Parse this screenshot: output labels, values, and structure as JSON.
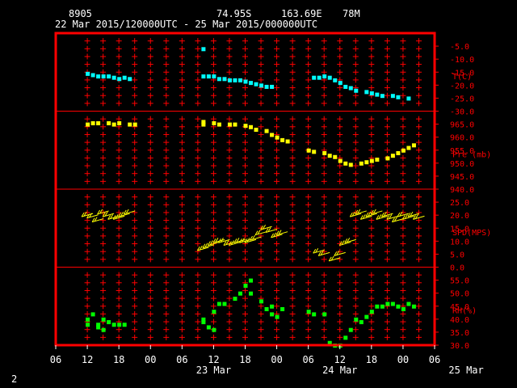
{
  "header": {
    "station": "8905",
    "lat": "74.95S",
    "lon": "163.69E",
    "elev": "78M",
    "period": "22 Mar 2015/120000UTC - 25 Mar 2015/000000UTC"
  },
  "footer": {
    "page": "2"
  },
  "colors": {
    "frame": "#ff0000",
    "grid": "#ff0000",
    "text": "#ffffff",
    "temp": "#00ffff",
    "pres": "#ffff00",
    "wind": "#ffff00",
    "rh": "#00ff00"
  },
  "chart_data": {
    "type": "scatter",
    "x_axis": {
      "hour_ticks": [
        "06",
        "12",
        "18",
        "00",
        "06",
        "12",
        "18",
        "00",
        "06",
        "12",
        "18",
        "00",
        "06"
      ],
      "range_hours": [
        -6,
        66
      ],
      "day_labels": [
        {
          "label": "23 Mar",
          "hour": 24
        },
        {
          "label": "24 Mar",
          "hour": 48
        },
        {
          "label": "25 Mar",
          "hour": 72
        }
      ]
    },
    "panels": [
      {
        "name": "temperature",
        "ylabel": "T(C)",
        "ylim": [
          -30,
          0
        ],
        "ticks": [
          "-5.0",
          "-10.0",
          "-15.0",
          "-20.0",
          "-25.0",
          "-30.0"
        ],
        "tick_values": [
          -5,
          -10,
          -15,
          -20,
          -25,
          -30
        ],
        "points": [
          [
            0,
            -15.5
          ],
          [
            1,
            -16
          ],
          [
            2,
            -16.5
          ],
          [
            3,
            -16.5
          ],
          [
            4,
            -16.5
          ],
          [
            5,
            -17
          ],
          [
            6,
            -17.5
          ],
          [
            7,
            -17
          ],
          [
            8,
            -17.5
          ],
          [
            22,
            -6
          ],
          [
            22,
            -16.5
          ],
          [
            23,
            -16.5
          ],
          [
            24,
            -16.5
          ],
          [
            25,
            -17.5
          ],
          [
            26,
            -17.5
          ],
          [
            27,
            -18
          ],
          [
            28,
            -18
          ],
          [
            29,
            -18
          ],
          [
            30,
            -18.5
          ],
          [
            31,
            -19
          ],
          [
            32,
            -19.5
          ],
          [
            33,
            -20
          ],
          [
            34,
            -20.5
          ],
          [
            35,
            -20.5
          ],
          [
            43,
            -17
          ],
          [
            44,
            -17
          ],
          [
            45,
            -16.5
          ],
          [
            46,
            -17
          ],
          [
            47,
            -18
          ],
          [
            48,
            -19
          ],
          [
            49,
            -20.5
          ],
          [
            50,
            -21
          ],
          [
            51,
            -22
          ],
          [
            53,
            -22.5
          ],
          [
            54,
            -23
          ],
          [
            55,
            -23.5
          ],
          [
            56,
            -24
          ],
          [
            58,
            -24
          ],
          [
            59,
            -24.5
          ],
          [
            61,
            -25
          ]
        ]
      },
      {
        "name": "pressure",
        "ylabel": "Pre (mb)",
        "ylim": [
          940,
          970
        ],
        "ticks": [
          "965.0",
          "960.0",
          "955.0",
          "950.0",
          "945.0",
          "940.0"
        ],
        "tick_values": [
          965,
          960,
          955,
          950,
          945,
          940
        ],
        "points": [
          [
            0,
            965
          ],
          [
            1,
            965.5
          ],
          [
            2,
            965.5
          ],
          [
            4,
            965.5
          ],
          [
            5,
            965
          ],
          [
            6,
            965.5
          ],
          [
            8,
            965
          ],
          [
            9,
            965
          ],
          [
            22,
            965
          ],
          [
            22,
            966
          ],
          [
            24,
            965.5
          ],
          [
            25,
            965
          ],
          [
            27,
            965
          ],
          [
            28,
            965
          ],
          [
            30,
            964.5
          ],
          [
            31,
            964
          ],
          [
            32,
            963
          ],
          [
            34,
            962.5
          ],
          [
            35,
            961
          ],
          [
            36,
            960
          ],
          [
            37,
            959
          ],
          [
            38,
            958.5
          ],
          [
            42,
            955
          ],
          [
            43,
            954.5
          ],
          [
            45,
            954
          ],
          [
            46,
            953
          ],
          [
            47,
            952.5
          ],
          [
            48,
            951
          ],
          [
            49,
            950
          ],
          [
            50,
            949.5
          ],
          [
            52,
            950
          ],
          [
            53,
            950.5
          ],
          [
            54,
            951
          ],
          [
            55,
            951.5
          ],
          [
            57,
            952
          ],
          [
            58,
            953
          ],
          [
            59,
            954
          ],
          [
            60,
            955
          ],
          [
            61,
            956
          ],
          [
            62,
            957
          ]
        ]
      },
      {
        "name": "wind",
        "ylabel": "SPD(MPS)",
        "ylim": [
          0,
          30
        ],
        "ticks": [
          "25.0",
          "20.0",
          "15.0",
          "10.0",
          "5.0",
          "0.0"
        ],
        "tick_values": [
          25,
          20,
          15,
          10,
          5,
          0
        ],
        "points": [
          [
            0,
            20
          ],
          [
            1,
            19.5
          ],
          [
            2,
            18
          ],
          [
            3,
            21
          ],
          [
            4,
            20
          ],
          [
            5,
            19
          ],
          [
            6,
            19
          ],
          [
            7,
            20
          ],
          [
            8,
            21
          ],
          [
            22,
            7
          ],
          [
            23,
            8
          ],
          [
            24,
            9
          ],
          [
            25,
            10
          ],
          [
            26,
            10
          ],
          [
            27,
            9
          ],
          [
            28,
            9
          ],
          [
            29,
            10
          ],
          [
            30,
            10
          ],
          [
            31,
            10
          ],
          [
            32,
            11
          ],
          [
            33,
            13
          ],
          [
            34,
            15
          ],
          [
            35,
            14
          ],
          [
            36,
            12
          ],
          [
            37,
            13
          ],
          [
            44,
            6
          ],
          [
            45,
            5
          ],
          [
            47,
            3
          ],
          [
            48,
            5
          ],
          [
            49,
            9
          ],
          [
            50,
            10
          ],
          [
            51,
            20
          ],
          [
            52,
            21
          ],
          [
            53,
            19
          ],
          [
            54,
            20
          ],
          [
            55,
            21
          ],
          [
            56,
            19
          ],
          [
            57,
            20
          ],
          [
            58,
            19
          ],
          [
            59,
            18
          ],
          [
            60,
            20
          ],
          [
            61,
            19
          ],
          [
            62,
            20
          ],
          [
            63,
            19
          ]
        ]
      },
      {
        "name": "rh",
        "ylabel": "RH(%)",
        "ylim": [
          30,
          60
        ],
        "ticks": [
          "55.0",
          "50.0",
          "45.0",
          "40.0",
          "35.0",
          "30.0"
        ],
        "tick_values": [
          55,
          50,
          45,
          40,
          35,
          30
        ],
        "points": [
          [
            0,
            38
          ],
          [
            0,
            40
          ],
          [
            1,
            42
          ],
          [
            2,
            37
          ],
          [
            2,
            38
          ],
          [
            3,
            40
          ],
          [
            3,
            36
          ],
          [
            4,
            39
          ],
          [
            5,
            38
          ],
          [
            6,
            38
          ],
          [
            7,
            38
          ],
          [
            22,
            40
          ],
          [
            22,
            39
          ],
          [
            23,
            37
          ],
          [
            24,
            43
          ],
          [
            24,
            36
          ],
          [
            25,
            46
          ],
          [
            26,
            46
          ],
          [
            28,
            48
          ],
          [
            29,
            50
          ],
          [
            30,
            53
          ],
          [
            31,
            55
          ],
          [
            31,
            50
          ],
          [
            33,
            47
          ],
          [
            34,
            44
          ],
          [
            35,
            45
          ],
          [
            35,
            42
          ],
          [
            36,
            41
          ],
          [
            37,
            44
          ],
          [
            42,
            43
          ],
          [
            43,
            42
          ],
          [
            45,
            42
          ],
          [
            46,
            31
          ],
          [
            47,
            30
          ],
          [
            48,
            30
          ],
          [
            49,
            33
          ],
          [
            50,
            36
          ],
          [
            51,
            40
          ],
          [
            52,
            39
          ],
          [
            53,
            41
          ],
          [
            54,
            43
          ],
          [
            55,
            45
          ],
          [
            56,
            45
          ],
          [
            57,
            46
          ],
          [
            58,
            46
          ],
          [
            59,
            45
          ],
          [
            60,
            44
          ],
          [
            61,
            46
          ],
          [
            62,
            45
          ]
        ]
      }
    ]
  }
}
